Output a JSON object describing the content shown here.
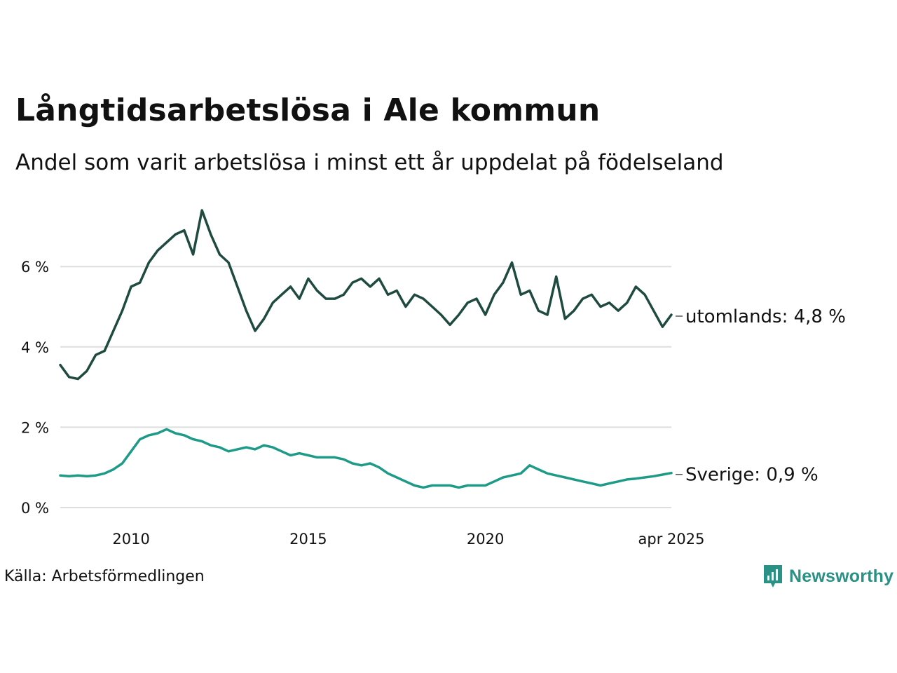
{
  "title": "Långtidsarbetslösa i Ale kommun",
  "subtitle": "Andel som varit arbetslösa i minst ett år uppdelat på födelseland",
  "source": "Källa: Arbetsförmedlingen",
  "brand": {
    "name": "Newsworthy",
    "color": "#2a9184",
    "icon": "newsworthy-logo-icon"
  },
  "chart_data": {
    "type": "line",
    "title": "Långtidsarbetslösa i Ale kommun",
    "subtitle": "Andel som varit arbetslösa i minst ett år uppdelat på födelseland",
    "xlim": [
      "2008-01",
      "2025-04"
    ],
    "ylim": [
      0,
      7.6
    ],
    "grid": true,
    "y_ticks": [
      {
        "value": 0,
        "label": "0 %"
      },
      {
        "value": 2,
        "label": "2 %"
      },
      {
        "value": 4,
        "label": "4 %"
      },
      {
        "value": 6,
        "label": "6 %"
      }
    ],
    "x_ticks": [
      {
        "value": "2010-01",
        "label": "2010"
      },
      {
        "value": "2015-01",
        "label": "2015"
      },
      {
        "value": "2020-01",
        "label": "2020"
      },
      {
        "value": "2025-04",
        "label": "apr 2025"
      }
    ],
    "series": [
      {
        "name": "utomlands",
        "end_label": "utomlands: 4,8 %",
        "color": "#1f4a40",
        "points": [
          [
            "2008-01",
            3.55
          ],
          [
            "2008-04",
            3.25
          ],
          [
            "2008-07",
            3.2
          ],
          [
            "2008-10",
            3.4
          ],
          [
            "2009-01",
            3.8
          ],
          [
            "2009-04",
            3.9
          ],
          [
            "2009-07",
            4.4
          ],
          [
            "2009-10",
            4.9
          ],
          [
            "2010-01",
            5.5
          ],
          [
            "2010-04",
            5.6
          ],
          [
            "2010-07",
            6.1
          ],
          [
            "2010-10",
            6.4
          ],
          [
            "2011-01",
            6.6
          ],
          [
            "2011-04",
            6.8
          ],
          [
            "2011-07",
            6.9
          ],
          [
            "2011-10",
            6.3
          ],
          [
            "2012-01",
            7.4
          ],
          [
            "2012-04",
            6.8
          ],
          [
            "2012-07",
            6.3
          ],
          [
            "2012-10",
            6.1
          ],
          [
            "2013-01",
            5.5
          ],
          [
            "2013-04",
            4.9
          ],
          [
            "2013-07",
            4.4
          ],
          [
            "2013-10",
            4.7
          ],
          [
            "2014-01",
            5.1
          ],
          [
            "2014-04",
            5.3
          ],
          [
            "2014-07",
            5.5
          ],
          [
            "2014-10",
            5.2
          ],
          [
            "2015-01",
            5.7
          ],
          [
            "2015-04",
            5.4
          ],
          [
            "2015-07",
            5.2
          ],
          [
            "2015-10",
            5.2
          ],
          [
            "2016-01",
            5.3
          ],
          [
            "2016-04",
            5.6
          ],
          [
            "2016-07",
            5.7
          ],
          [
            "2016-10",
            5.5
          ],
          [
            "2017-01",
            5.7
          ],
          [
            "2017-04",
            5.3
          ],
          [
            "2017-07",
            5.4
          ],
          [
            "2017-10",
            5.0
          ],
          [
            "2018-01",
            5.3
          ],
          [
            "2018-04",
            5.2
          ],
          [
            "2018-07",
            5.0
          ],
          [
            "2018-10",
            4.8
          ],
          [
            "2019-01",
            4.55
          ],
          [
            "2019-04",
            4.8
          ],
          [
            "2019-07",
            5.1
          ],
          [
            "2019-10",
            5.2
          ],
          [
            "2020-01",
            4.8
          ],
          [
            "2020-04",
            5.3
          ],
          [
            "2020-07",
            5.6
          ],
          [
            "2020-10",
            6.1
          ],
          [
            "2021-01",
            5.3
          ],
          [
            "2021-04",
            5.4
          ],
          [
            "2021-07",
            4.9
          ],
          [
            "2021-10",
            4.8
          ],
          [
            "2022-01",
            5.75
          ],
          [
            "2022-04",
            4.7
          ],
          [
            "2022-07",
            4.9
          ],
          [
            "2022-10",
            5.2
          ],
          [
            "2023-01",
            5.3
          ],
          [
            "2023-04",
            5.0
          ],
          [
            "2023-07",
            5.1
          ],
          [
            "2023-10",
            4.9
          ],
          [
            "2024-01",
            5.1
          ],
          [
            "2024-04",
            5.5
          ],
          [
            "2024-07",
            5.3
          ],
          [
            "2024-10",
            4.9
          ],
          [
            "2025-01",
            4.5
          ],
          [
            "2025-04",
            4.8
          ]
        ]
      },
      {
        "name": "Sverige",
        "end_label": "Sverige: 0,9 %",
        "color": "#1d9a88",
        "points": [
          [
            "2008-01",
            0.8
          ],
          [
            "2008-04",
            0.78
          ],
          [
            "2008-07",
            0.8
          ],
          [
            "2008-10",
            0.78
          ],
          [
            "2009-01",
            0.8
          ],
          [
            "2009-04",
            0.85
          ],
          [
            "2009-07",
            0.95
          ],
          [
            "2009-10",
            1.1
          ],
          [
            "2010-01",
            1.4
          ],
          [
            "2010-04",
            1.7
          ],
          [
            "2010-07",
            1.8
          ],
          [
            "2010-10",
            1.85
          ],
          [
            "2011-01",
            1.95
          ],
          [
            "2011-04",
            1.85
          ],
          [
            "2011-07",
            1.8
          ],
          [
            "2011-10",
            1.7
          ],
          [
            "2012-01",
            1.65
          ],
          [
            "2012-04",
            1.55
          ],
          [
            "2012-07",
            1.5
          ],
          [
            "2012-10",
            1.4
          ],
          [
            "2013-01",
            1.45
          ],
          [
            "2013-04",
            1.5
          ],
          [
            "2013-07",
            1.45
          ],
          [
            "2013-10",
            1.55
          ],
          [
            "2014-01",
            1.5
          ],
          [
            "2014-04",
            1.4
          ],
          [
            "2014-07",
            1.3
          ],
          [
            "2014-10",
            1.35
          ],
          [
            "2015-01",
            1.3
          ],
          [
            "2015-04",
            1.25
          ],
          [
            "2015-07",
            1.25
          ],
          [
            "2015-10",
            1.25
          ],
          [
            "2016-01",
            1.2
          ],
          [
            "2016-04",
            1.1
          ],
          [
            "2016-07",
            1.05
          ],
          [
            "2016-10",
            1.1
          ],
          [
            "2017-01",
            1.0
          ],
          [
            "2017-04",
            0.85
          ],
          [
            "2017-07",
            0.75
          ],
          [
            "2017-10",
            0.65
          ],
          [
            "2018-01",
            0.55
          ],
          [
            "2018-04",
            0.5
          ],
          [
            "2018-07",
            0.55
          ],
          [
            "2018-10",
            0.55
          ],
          [
            "2019-01",
            0.55
          ],
          [
            "2019-04",
            0.5
          ],
          [
            "2019-07",
            0.55
          ],
          [
            "2019-10",
            0.55
          ],
          [
            "2020-01",
            0.55
          ],
          [
            "2020-04",
            0.65
          ],
          [
            "2020-07",
            0.75
          ],
          [
            "2020-10",
            0.8
          ],
          [
            "2021-01",
            0.85
          ],
          [
            "2021-04",
            1.05
          ],
          [
            "2021-07",
            0.95
          ],
          [
            "2021-10",
            0.85
          ],
          [
            "2022-01",
            0.8
          ],
          [
            "2022-04",
            0.75
          ],
          [
            "2022-07",
            0.7
          ],
          [
            "2022-10",
            0.65
          ],
          [
            "2023-01",
            0.6
          ],
          [
            "2023-04",
            0.55
          ],
          [
            "2023-07",
            0.6
          ],
          [
            "2023-10",
            0.65
          ],
          [
            "2024-01",
            0.7
          ],
          [
            "2024-04",
            0.72
          ],
          [
            "2024-07",
            0.75
          ],
          [
            "2024-10",
            0.78
          ],
          [
            "2025-01",
            0.82
          ],
          [
            "2025-04",
            0.86
          ]
        ]
      }
    ]
  }
}
